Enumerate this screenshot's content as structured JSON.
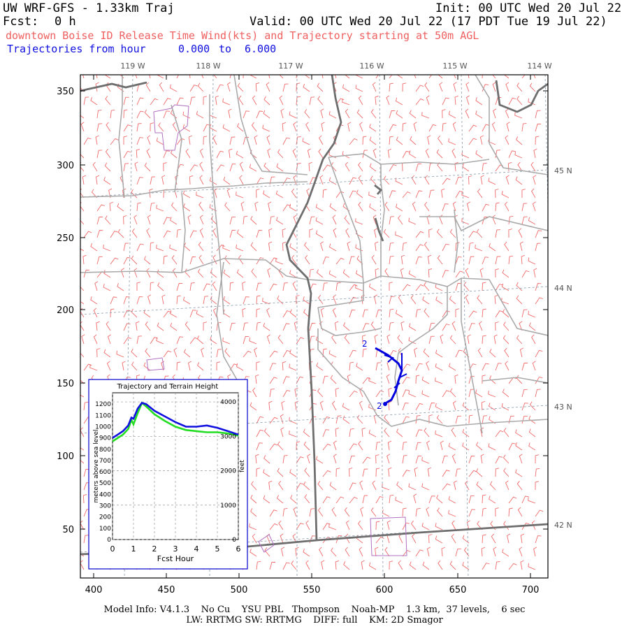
{
  "header": {
    "model": "UW WRF-GFS - 1.33km Traj",
    "init": "Init: 00 UTC Wed 20 Jul 22",
    "fcst_label": "Fcst:",
    "fcst_value": "0 h",
    "valid": "Valid: 00 UTC Wed 20 Jul 22 (17 PDT Tue 19 Jul 22)",
    "subtitle": "downtown Boise ID Release Time Wind(kts) and Trajectory starting at 50m AGL",
    "traj_label": "Trajectories from hour",
    "traj_from": "0.000",
    "traj_to_word": "to",
    "traj_to": "6.000"
  },
  "map": {
    "lon_labels": [
      "119 W",
      "118 W",
      "117 W",
      "116 W",
      "115 W",
      "114 W"
    ],
    "lat_labels": [
      "45 N",
      "44 N",
      "43 N",
      "42 N"
    ],
    "x_ticks": [
      "400",
      "450",
      "500",
      "550",
      "600",
      "650",
      "700"
    ],
    "y_ticks": [
      "350",
      "300",
      "250",
      "200",
      "150",
      "100",
      "50"
    ],
    "trajectory_marker": "2",
    "colors": {
      "barbs": "#f06a6a",
      "trajectory": "#0000dd",
      "county": "#aaaaaa",
      "state": "#707070",
      "urban": "#b070c0"
    }
  },
  "inset": {
    "title": "Trajectory and Terrain Height",
    "y_left_label": "meters above sea level",
    "y_right_label": "feet",
    "x_label": "Fcst Hour",
    "x_ticks": [
      "0",
      "1",
      "2",
      "3",
      "4",
      "5",
      "6"
    ],
    "y_left_ticks": [
      "0",
      "100",
      "200",
      "300",
      "400",
      "500",
      "600",
      "700",
      "800",
      "900",
      "1000",
      "1100",
      "1200"
    ],
    "y_right_ticks": [
      "0",
      "1000",
      "2000",
      "3000",
      "4000"
    ]
  },
  "chart_data": {
    "type": "line",
    "title": "Trajectory and Terrain Height",
    "xlabel": "Fcst Hour",
    "ylabel": "meters above sea level",
    "xlim": [
      0,
      6
    ],
    "ylim": [
      0,
      1300
    ],
    "x": [
      0.0,
      0.25,
      0.5,
      0.75,
      0.9,
      1.0,
      1.2,
      1.4,
      1.6,
      2.0,
      2.5,
      3.0,
      3.5,
      4.0,
      4.5,
      5.0,
      5.5,
      6.0
    ],
    "series": [
      {
        "name": "",
        "color": "#1010e0",
        "values": [
          900,
          930,
          960,
          1010,
          1080,
          1070,
          1160,
          1210,
          1200,
          1140,
          1090,
          1040,
          1000,
          1000,
          1010,
          990,
          960,
          930
        ]
      },
      {
        "name": "",
        "color": "#22dd22",
        "values": [
          870,
          900,
          930,
          980,
          1060,
          1020,
          1120,
          1210,
          1180,
          1110,
          1050,
          1000,
          970,
          960,
          950,
          950,
          940,
          920
        ]
      }
    ]
  },
  "footer": {
    "line1": "Model Info: V4.1.3    No Cu    YSU PBL   Thompson    Noah-MP    1.3 km,  37 levels,    6 sec",
    "line2": "LW: RRTMG SW: RRTMG    DIFF: full    KM: 2D Smagor"
  }
}
